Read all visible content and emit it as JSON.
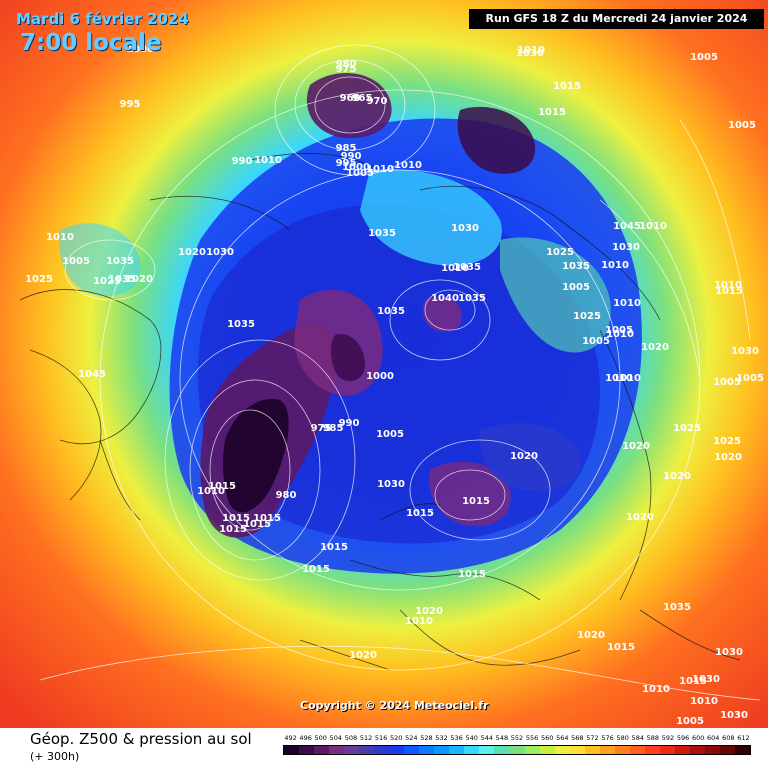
{
  "header": {
    "date": "Mardi 6 février 2024",
    "local_time": "7:00 locale",
    "run": "Run GFS 18 Z du Mercredi 24 janvier 2024"
  },
  "copyright": "Copyright © 2024 Meteociel.fr",
  "footer": {
    "title": "Géop. Z500 & pression au sol",
    "subtitle": "(+ 300h)"
  },
  "legend": {
    "values": [
      "492",
      "496",
      "500",
      "504",
      "508",
      "512",
      "516",
      "520",
      "524",
      "528",
      "532",
      "536",
      "540",
      "544",
      "548",
      "552",
      "556",
      "560",
      "564",
      "568",
      "572",
      "576",
      "580",
      "584",
      "588",
      "592",
      "596",
      "600",
      "604",
      "608",
      "612"
    ],
    "colors": [
      "#1a0026",
      "#3a0a4a",
      "#5a1a66",
      "#7a2a80",
      "#6a3a99",
      "#4a3aaa",
      "#2a3acc",
      "#1a3aee",
      "#0a5aff",
      "#0a7aff",
      "#0a9aff",
      "#1ab6ff",
      "#3ad6ff",
      "#5aeeee",
      "#5ae0b0",
      "#7ae080",
      "#9aee60",
      "#c6f040",
      "#eef040",
      "#ffe030",
      "#ffc020",
      "#ffa020",
      "#ff8020",
      "#ff6020",
      "#ff4020",
      "#ee2a10",
      "#cc1a0a",
      "#aa1010",
      "#880a0a",
      "#660505",
      "#330000"
    ]
  },
  "pressure_labels": [
    "980",
    "975",
    "960",
    "965",
    "970",
    "985",
    "990",
    "995",
    "1000",
    "1005",
    "1010",
    "1010",
    "990",
    "1010",
    "1015",
    "1035",
    "1030",
    "1010",
    "1030",
    "1015",
    "1010",
    "1005",
    "995",
    "1000",
    "1005",
    "1010",
    "1005",
    "1035",
    "1025",
    "1035",
    "1020",
    "1025",
    "1020",
    "1030",
    "1035",
    "1045",
    "1035",
    "1040",
    "1035",
    "1035",
    "1025",
    "1035",
    "1045",
    "1030",
    "1010",
    "1005",
    "1010",
    "1025",
    "1005",
    "1010",
    "1005",
    "1020",
    "1010",
    "1010",
    "1010",
    "1015",
    "1030",
    "1005",
    "1005",
    "1000",
    "1005",
    "990",
    "985",
    "975",
    "980",
    "1010",
    "1015",
    "1015",
    "1015",
    "1015",
    "1015",
    "1030",
    "1015",
    "1015",
    "1020",
    "1020",
    "1025",
    "1025",
    "1020",
    "1020",
    "1020",
    "1015",
    "1015",
    "1015",
    "1020",
    "1010",
    "1020",
    "1020",
    "1015",
    "1035",
    "1030",
    "1015",
    "1030",
    "1010",
    "1010",
    "1005",
    "1030",
    "1010"
  ]
}
